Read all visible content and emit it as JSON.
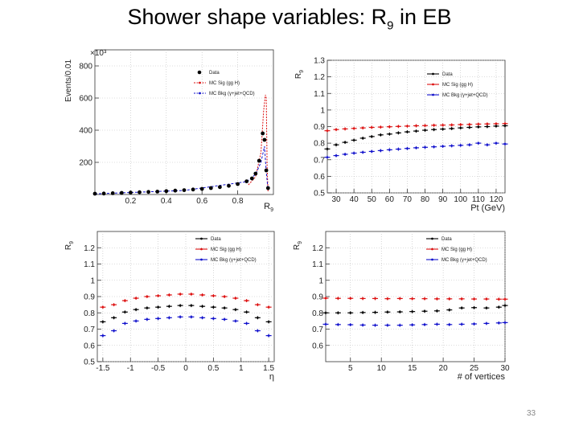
{
  "slide": {
    "title_main": "Shower shape variables:  R",
    "title_sub": "9",
    "title_tail": " in EB",
    "page_number": "33"
  },
  "colors": {
    "data": "#000000",
    "sig": "#dd1111",
    "bkg": "#1111cc"
  },
  "chart_data": [
    {
      "id": "r9-dist",
      "type": "scatter",
      "title": "",
      "xlabel": "R",
      "xlabel_sub": "9",
      "ylabel": "Events/0.01",
      "multiplier": "×10³",
      "xlim": [
        0,
        1.0
      ],
      "ylim": [
        0,
        900
      ],
      "xticks": [
        0.2,
        0.4,
        0.6,
        0.8
      ],
      "yticks": [
        200,
        400,
        600,
        800
      ],
      "xtick_labels": [
        "0.2",
        "0.4",
        "0.6",
        "0.8"
      ],
      "ytick_labels": [
        "200",
        "400",
        "600",
        "800"
      ],
      "legend": [
        "Data",
        "MC Sig (gg H)",
        "MC Bkg (γ+jet+QCD)"
      ],
      "series": [
        {
          "name": "Data",
          "x": [
            0.0,
            0.05,
            0.1,
            0.15,
            0.2,
            0.25,
            0.3,
            0.35,
            0.4,
            0.45,
            0.5,
            0.55,
            0.6,
            0.65,
            0.7,
            0.75,
            0.8,
            0.85,
            0.88,
            0.9,
            0.92,
            0.94,
            0.95,
            0.96,
            0.97
          ],
          "y": [
            5,
            6,
            8,
            10,
            12,
            14,
            16,
            18,
            21,
            24,
            27,
            31,
            35,
            40,
            46,
            54,
            65,
            82,
            100,
            130,
            210,
            380,
            340,
            150,
            40
          ]
        },
        {
          "name": "MC Sig (gg H)",
          "x": [
            0.86,
            0.9,
            0.93,
            0.945,
            0.955,
            0.96,
            0.965,
            0.97
          ],
          "y": [
            60,
            110,
            260,
            520,
            620,
            600,
            160,
            20
          ]
        },
        {
          "name": "MC Bkg (γ+jet+QCD)",
          "x": [
            0.0,
            0.5,
            0.85,
            0.9,
            0.93,
            0.95,
            0.96,
            0.97
          ],
          "y": [
            4,
            25,
            80,
            125,
            200,
            300,
            140,
            30
          ]
        }
      ]
    },
    {
      "id": "r9-vs-pt",
      "type": "line",
      "xlabel": "Pt (GeV)",
      "ylabel": "R",
      "ylabel_sub": "9",
      "xlim": [
        25,
        125
      ],
      "ylim": [
        0.5,
        1.3
      ],
      "xticks": [
        30,
        40,
        50,
        60,
        70,
        80,
        90,
        100,
        110,
        120
      ],
      "yticks": [
        0.5,
        0.6,
        0.7,
        0.8,
        0.9,
        1.0,
        1.1,
        1.2,
        1.3
      ],
      "xtick_labels": [
        "30",
        "40",
        "50",
        "60",
        "70",
        "80",
        "90",
        "100",
        "110",
        "120"
      ],
      "ytick_labels": [
        "0.5",
        "0.6",
        "0.7",
        "0.8",
        "0.9",
        "1",
        "1.1",
        "1.2",
        "1.3"
      ],
      "legend": [
        "Data",
        "MC Sig (gg H)",
        "MC Bkg (γ+jet+QCD)"
      ],
      "series": [
        {
          "name": "Data",
          "x": [
            25,
            30,
            35,
            40,
            45,
            50,
            55,
            60,
            65,
            70,
            75,
            80,
            85,
            90,
            95,
            100,
            105,
            110,
            115,
            120,
            125
          ],
          "y": [
            0.765,
            0.79,
            0.805,
            0.818,
            0.83,
            0.84,
            0.85,
            0.855,
            0.862,
            0.868,
            0.873,
            0.878,
            0.882,
            0.885,
            0.888,
            0.892,
            0.895,
            0.898,
            0.9,
            0.903,
            0.905
          ]
        },
        {
          "name": "MC Sig (gg H)",
          "x": [
            25,
            30,
            35,
            40,
            45,
            50,
            55,
            60,
            65,
            70,
            75,
            80,
            85,
            90,
            95,
            100,
            105,
            110,
            115,
            120,
            125
          ],
          "y": [
            0.875,
            0.882,
            0.886,
            0.889,
            0.892,
            0.895,
            0.897,
            0.899,
            0.901,
            0.903,
            0.905,
            0.906,
            0.908,
            0.909,
            0.91,
            0.912,
            0.913,
            0.915,
            0.916,
            0.917,
            0.918
          ]
        },
        {
          "name": "MC Bkg (γ+jet+QCD)",
          "x": [
            25,
            30,
            35,
            40,
            45,
            50,
            55,
            60,
            65,
            70,
            75,
            80,
            85,
            90,
            95,
            100,
            105,
            110,
            115,
            120,
            125
          ],
          "y": [
            0.715,
            0.725,
            0.733,
            0.74,
            0.745,
            0.75,
            0.755,
            0.76,
            0.764,
            0.768,
            0.772,
            0.775,
            0.778,
            0.781,
            0.784,
            0.787,
            0.79,
            0.8,
            0.79,
            0.8,
            0.795
          ]
        }
      ]
    },
    {
      "id": "r9-vs-eta",
      "type": "line",
      "xlabel": "η",
      "ylabel": "R",
      "ylabel_sub": "9",
      "xlim": [
        -1.6,
        1.6
      ],
      "ylim": [
        0.5,
        1.3
      ],
      "xticks": [
        -1.5,
        -1.0,
        -0.5,
        0,
        0.5,
        1.0,
        1.5
      ],
      "yticks": [
        0.5,
        0.6,
        0.7,
        0.8,
        0.9,
        1.0,
        1.1,
        1.2
      ],
      "xtick_labels": [
        "-1.5",
        "-1",
        "-0.5",
        "0",
        "0.5",
        "1",
        "1.5"
      ],
      "ytick_labels": [
        "0.5",
        "0.6",
        "0.7",
        "0.8",
        "0.9",
        "1",
        "1.1",
        "1.2"
      ],
      "legend": [
        "Data",
        "MC Sig (gg H)",
        "MC Bkg (γ+jet+QCD)"
      ],
      "series": [
        {
          "name": "Data",
          "x": [
            -1.5,
            -1.3,
            -1.1,
            -0.9,
            -0.7,
            -0.5,
            -0.3,
            -0.1,
            0.1,
            0.3,
            0.5,
            0.7,
            0.9,
            1.1,
            1.3,
            1.5
          ],
          "y": [
            0.745,
            0.77,
            0.805,
            0.82,
            0.83,
            0.835,
            0.84,
            0.845,
            0.845,
            0.84,
            0.835,
            0.83,
            0.82,
            0.805,
            0.77,
            0.745
          ]
        },
        {
          "name": "MC Sig (gg H)",
          "x": [
            -1.5,
            -1.3,
            -1.1,
            -0.9,
            -0.7,
            -0.5,
            -0.3,
            -0.1,
            0.1,
            0.3,
            0.5,
            0.7,
            0.9,
            1.1,
            1.3,
            1.5
          ],
          "y": [
            0.835,
            0.85,
            0.875,
            0.89,
            0.9,
            0.905,
            0.91,
            0.915,
            0.915,
            0.91,
            0.905,
            0.9,
            0.89,
            0.875,
            0.85,
            0.835
          ]
        },
        {
          "name": "MC Bkg (γ+jet+QCD)",
          "x": [
            -1.5,
            -1.3,
            -1.1,
            -0.9,
            -0.7,
            -0.5,
            -0.3,
            -0.1,
            0.1,
            0.3,
            0.5,
            0.7,
            0.9,
            1.1,
            1.3,
            1.5
          ],
          "y": [
            0.66,
            0.69,
            0.735,
            0.75,
            0.76,
            0.765,
            0.77,
            0.775,
            0.775,
            0.77,
            0.765,
            0.76,
            0.75,
            0.735,
            0.69,
            0.66
          ]
        }
      ]
    },
    {
      "id": "r9-vs-nvtx",
      "type": "line",
      "xlabel": "# of vertices",
      "ylabel": "R",
      "ylabel_sub": "9",
      "xlim": [
        1,
        30
      ],
      "ylim": [
        0.5,
        1.3
      ],
      "xticks": [
        5,
        10,
        15,
        20,
        25,
        30
      ],
      "yticks": [
        0.6,
        0.7,
        0.8,
        0.9,
        1.0,
        1.1,
        1.2
      ],
      "xtick_labels": [
        "5",
        "10",
        "15",
        "20",
        "25",
        "30"
      ],
      "ytick_labels": [
        "0.6",
        "0.7",
        "0.8",
        "0.9",
        "1",
        "1.1",
        "1.2"
      ],
      "legend": [
        "Data",
        "MC Sig (gg H)",
        "MC Bkg (γ+jet+QCD)"
      ],
      "series": [
        {
          "name": "Data",
          "x": [
            1,
            3,
            5,
            7,
            9,
            11,
            13,
            15,
            17,
            19,
            21,
            23,
            25,
            27,
            29,
            30
          ],
          "y": [
            0.8,
            0.8,
            0.8,
            0.802,
            0.803,
            0.805,
            0.806,
            0.808,
            0.81,
            0.812,
            0.818,
            0.83,
            0.832,
            0.83,
            0.835,
            0.845
          ]
        },
        {
          "name": "MC Sig (gg H)",
          "x": [
            1,
            3,
            5,
            7,
            9,
            11,
            13,
            15,
            17,
            19,
            21,
            23,
            25,
            27,
            29,
            30
          ],
          "y": [
            0.89,
            0.889,
            0.889,
            0.888,
            0.888,
            0.887,
            0.888,
            0.887,
            0.887,
            0.886,
            0.886,
            0.886,
            0.885,
            0.885,
            0.884,
            0.884
          ]
        },
        {
          "name": "MC Bkg (γ+jet+QCD)",
          "x": [
            1,
            3,
            5,
            7,
            9,
            11,
            13,
            15,
            17,
            19,
            21,
            23,
            25,
            27,
            29,
            30
          ],
          "y": [
            0.73,
            0.728,
            0.727,
            0.725,
            0.724,
            0.724,
            0.724,
            0.726,
            0.728,
            0.73,
            0.728,
            0.73,
            0.732,
            0.735,
            0.738,
            0.74
          ]
        }
      ]
    }
  ]
}
